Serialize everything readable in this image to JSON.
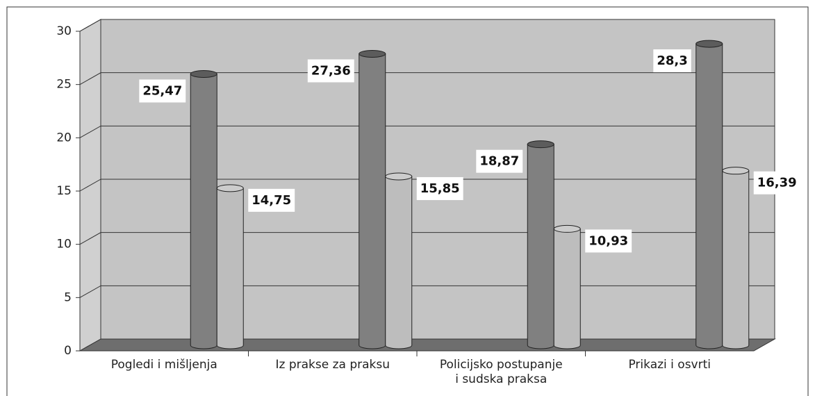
{
  "chart_data": {
    "type": "bar3d",
    "categories": [
      "Pogledi i mišljenja",
      "Iz prakse za praksu",
      "Policijsko postupanje\ni sudska praksa",
      "Prikazi i osvrti"
    ],
    "series": [
      {
        "color": "#808080",
        "values": [
          25.47,
          27.36,
          18.87,
          28.3
        ],
        "value_labels": [
          "25,47",
          "27,36",
          "18,87",
          "28,3"
        ]
      },
      {
        "color": "#bdbdbd",
        "values": [
          14.75,
          15.85,
          10.93,
          16.39
        ],
        "value_labels": [
          "14,75",
          "15,85",
          "10,93",
          "16,39"
        ]
      }
    ],
    "ylim": [
      0,
      30
    ],
    "yticks": [
      0,
      5,
      10,
      15,
      20,
      25,
      30
    ],
    "grid": true
  }
}
